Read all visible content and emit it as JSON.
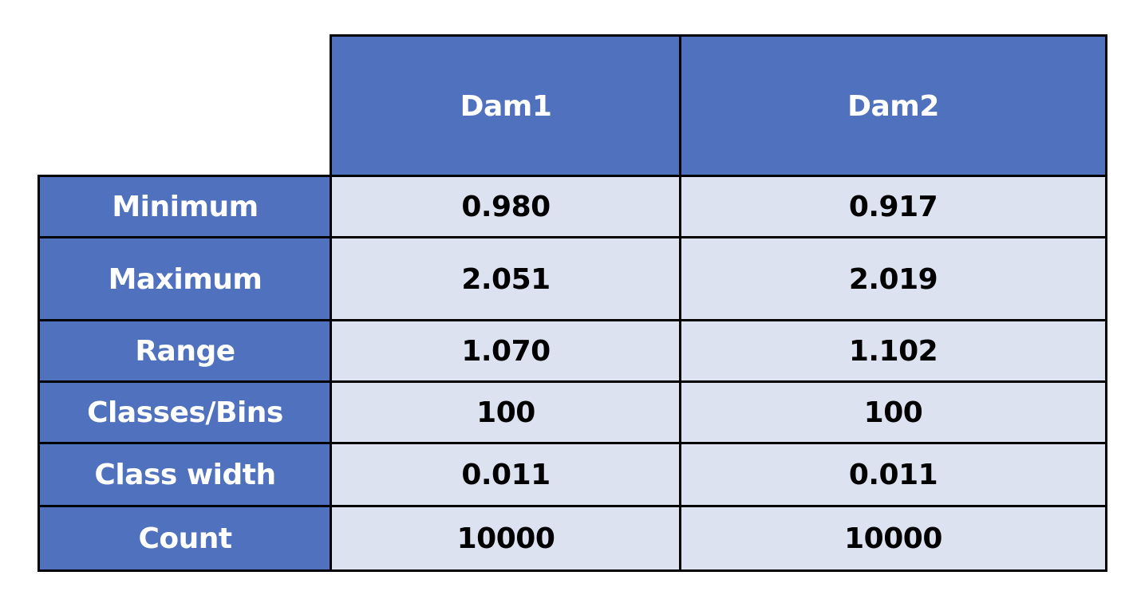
{
  "table": {
    "columns": [
      "Dam1",
      "Dam2"
    ],
    "rows": [
      {
        "label": "Minimum",
        "values": [
          "0.980",
          "0.917"
        ]
      },
      {
        "label": "Maximum",
        "values": [
          "2.051",
          "2.019"
        ]
      },
      {
        "label": "Range",
        "values": [
          "1.070",
          "1.102"
        ]
      },
      {
        "label": "Classes/Bins",
        "values": [
          "100",
          "100"
        ]
      },
      {
        "label": "Class width",
        "values": [
          "0.011",
          "0.011"
        ]
      },
      {
        "label": "Count",
        "values": [
          "10000",
          "10000"
        ]
      }
    ]
  },
  "colors": {
    "header_fill": "#4f71be",
    "value_fill": "#dde2f1",
    "header_text": "#ffffff",
    "value_text": "#000000",
    "border": "#000000"
  }
}
